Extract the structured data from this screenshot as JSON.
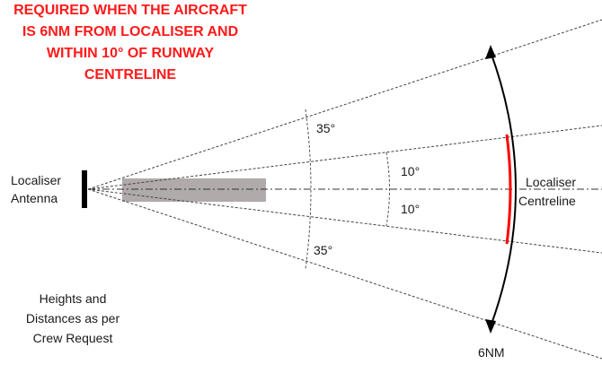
{
  "title_lines": [
    "REQUIRED WHEN THE AIRCRAFT",
    "IS 6NM FROM LOCALISER AND",
    "WITHIN 10° OF RUNWAY",
    "CENTRELINE"
  ],
  "antenna_label": [
    "Localiser",
    "Antenna"
  ],
  "centreline_label": [
    "Localiser",
    "Centreline"
  ],
  "angles": {
    "upper_outer": "35°",
    "upper_inner": "10°",
    "lower_inner": "10°",
    "lower_outer": "35°"
  },
  "distance_label": "6NM",
  "note_lines": [
    "Heights and",
    "Distances as per",
    "Crew Request"
  ],
  "colors": {
    "title": "#ff1a1a",
    "arc_highlight": "#ff0000",
    "runway": "#b0aaaa"
  }
}
